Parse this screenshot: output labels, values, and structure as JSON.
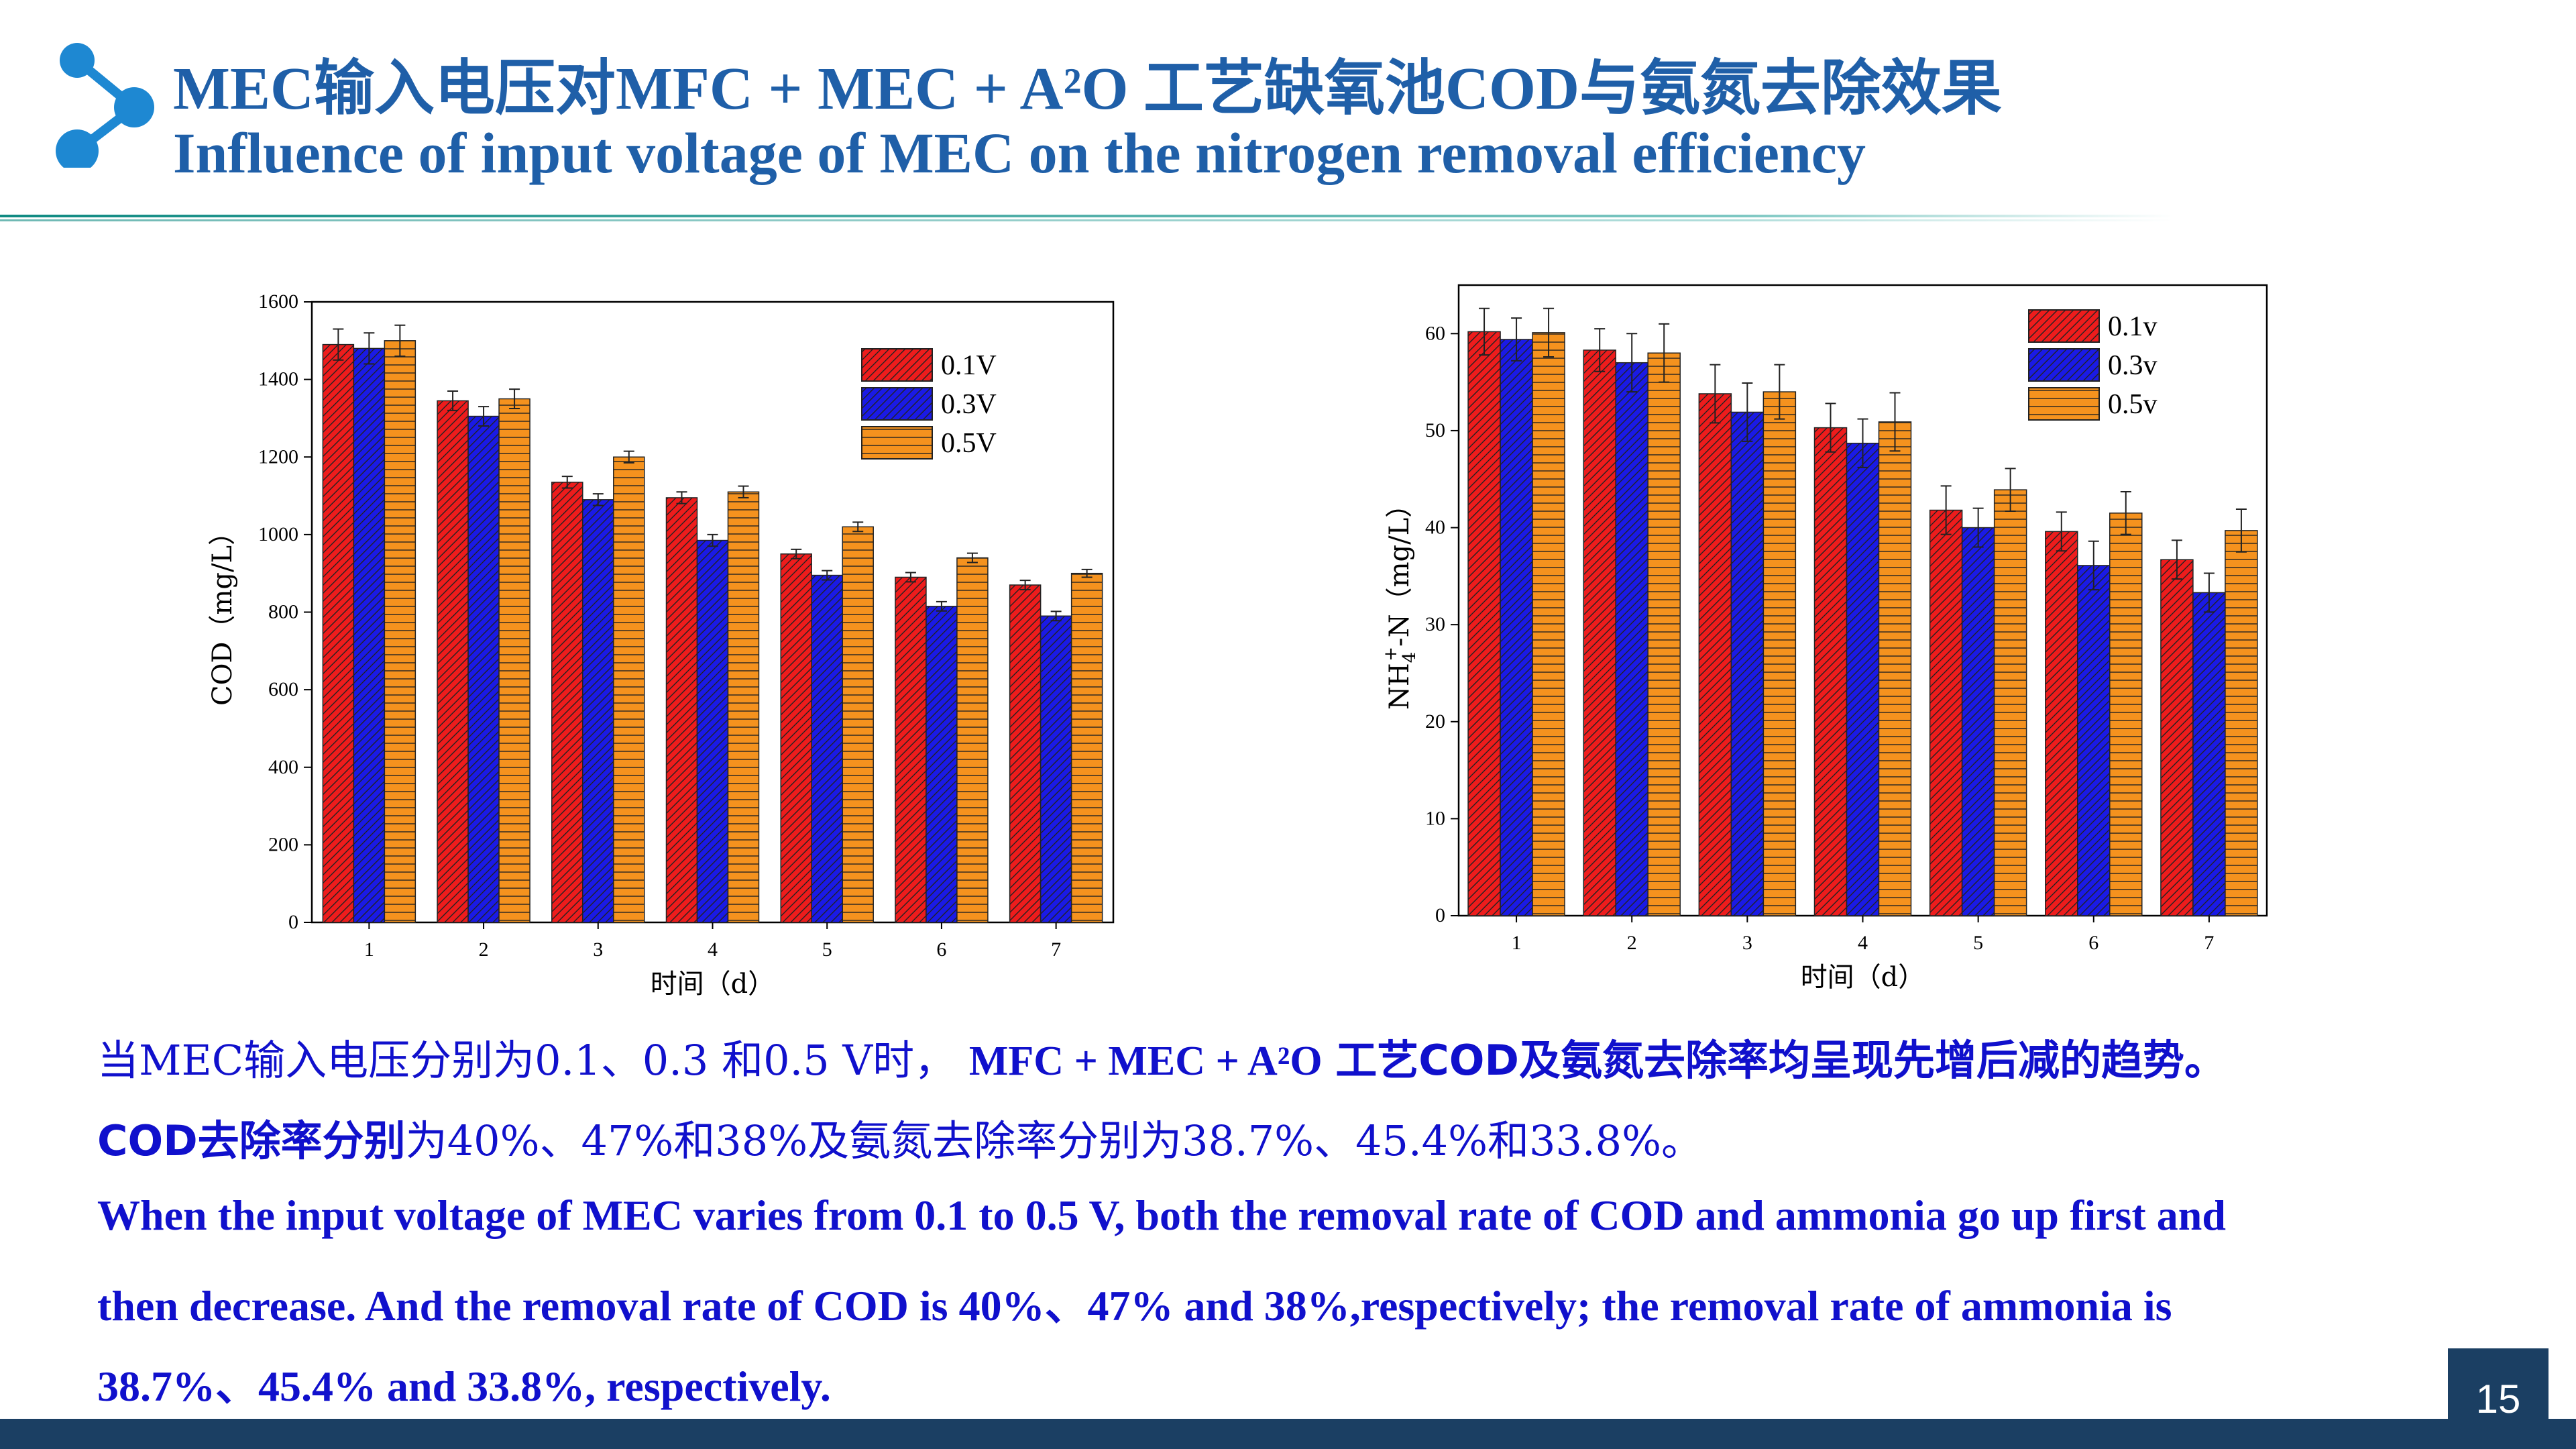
{
  "header": {
    "title_zh": "MEC输入电压对MFC + MEC + A²O 工艺缺氧池COD与氨氮去除效果",
    "title_en": "Influence of input voltage of MEC on the nitrogen removal efficiency"
  },
  "colors": {
    "title": "#1f5fa8",
    "body_text": "#1010cc",
    "footer": "#1b3f63",
    "series_red": "#ee1c1c",
    "series_blue": "#1a1ae6",
    "series_orange": "#f5921e"
  },
  "chart_data": [
    {
      "type": "bar",
      "categories": [
        "1",
        "2",
        "3",
        "4",
        "5",
        "6",
        "7"
      ],
      "series": [
        {
          "name": "0.1V",
          "values": [
            1490,
            1345,
            1135,
            1095,
            950,
            890,
            870
          ],
          "errors": [
            40,
            25,
            15,
            15,
            12,
            12,
            12
          ],
          "pattern": "diagonal"
        },
        {
          "name": "0.3V",
          "values": [
            1480,
            1305,
            1090,
            985,
            895,
            815,
            790
          ],
          "errors": [
            40,
            25,
            15,
            15,
            12,
            12,
            12
          ],
          "pattern": "diagonal"
        },
        {
          "name": "0.5V",
          "values": [
            1500,
            1350,
            1200,
            1110,
            1020,
            940,
            900
          ],
          "errors": [
            40,
            25,
            15,
            15,
            12,
            12,
            10
          ],
          "pattern": "horizontal"
        }
      ],
      "ylabel": "COD（mg/L）",
      "xlabel": "时间（d）",
      "ylim": [
        0,
        1600
      ],
      "yticks": [
        "0",
        "200",
        "400",
        "600",
        "800",
        "1000",
        "1200",
        "1400",
        "1600"
      ],
      "legend_position": "top-right",
      "grid": false
    },
    {
      "type": "bar",
      "categories": [
        "1",
        "2",
        "3",
        "4",
        "5",
        "6",
        "7"
      ],
      "series": [
        {
          "name": "0.1v",
          "values": [
            60.2,
            58.3,
            53.8,
            50.3,
            41.8,
            39.6,
            36.7
          ],
          "errors": [
            2.4,
            2.2,
            3.0,
            2.5,
            2.5,
            2.0,
            2.0
          ],
          "pattern": "diagonal"
        },
        {
          "name": "0.3v",
          "values": [
            59.4,
            57.0,
            51.9,
            48.7,
            40.0,
            36.1,
            33.3
          ],
          "errors": [
            2.2,
            3.0,
            3.0,
            2.5,
            2.0,
            2.5,
            2.0
          ],
          "pattern": "diagonal"
        },
        {
          "name": "0.5v",
          "values": [
            60.1,
            58.0,
            54.0,
            50.9,
            43.9,
            41.5,
            39.7
          ],
          "errors": [
            2.5,
            3.0,
            2.8,
            3.0,
            2.2,
            2.2,
            2.2
          ],
          "pattern": "horizontal"
        }
      ],
      "ylabel_main": "NH",
      "ylabel_sub": "4",
      "ylabel_sup": "+",
      "ylabel_tail": "-N（mg/L）",
      "xlabel": "时间（d）",
      "ylim": [
        0,
        65
      ],
      "yticks": [
        "0",
        "10",
        "20",
        "30",
        "40",
        "50",
        "60"
      ],
      "legend_position": "top-right",
      "grid": false
    }
  ],
  "body": {
    "line1_a": "当MEC输入电压分别为0.1、0.3 和0.5 V时，",
    "line1_b": "MFC + MEC + A²O",
    "line1_c": "工艺COD及氨氮去除率均呈现先增后减的趋势。",
    "line2_a": "COD去除率分别",
    "line2_b": "为40%、47%和38%及氨氮去除率分别为38.7%、45.4%和33.8%。",
    "line3": "When the input voltage of MEC varies from 0.1 to 0.5 V, both the removal rate of COD and ammonia go up first and",
    "line4": "then decrease. And the removal rate of COD is 40%、47% and 38%,respectively; the removal rate of ammonia is",
    "line5": "38.7%、45.4% and 33.8%, respectively."
  },
  "page_number": "15"
}
